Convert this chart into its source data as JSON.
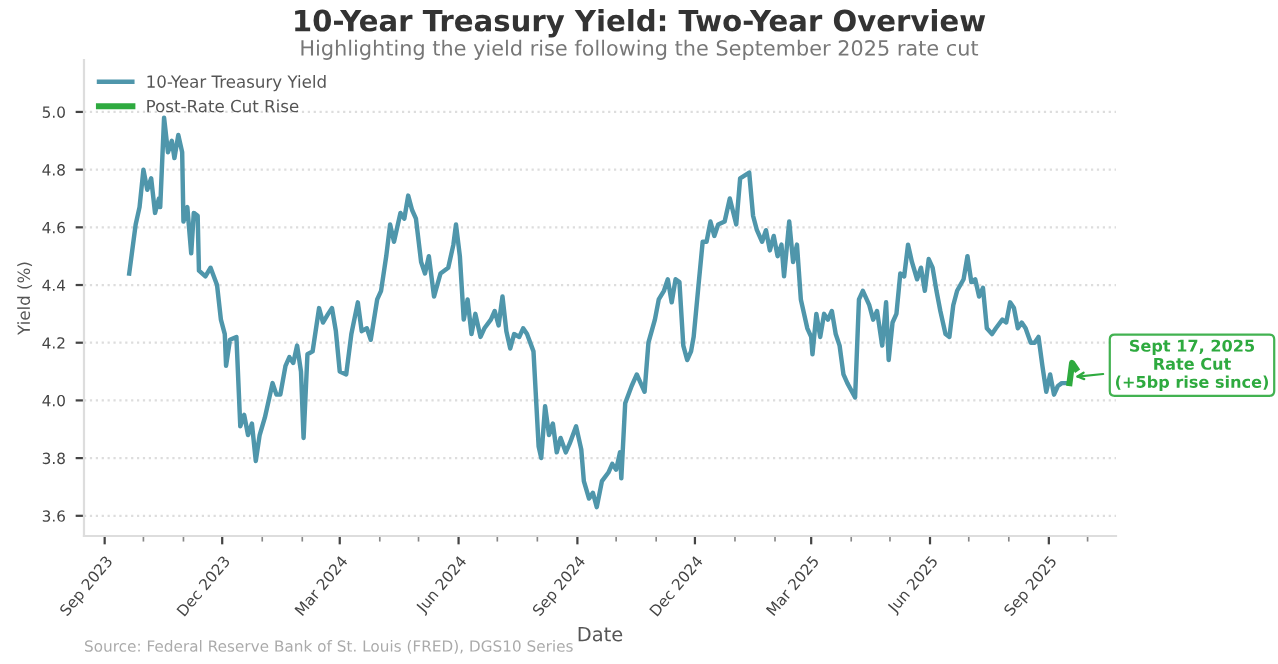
{
  "chart_data": {
    "type": "line",
    "title": "10-Year Treasury Yield: Two-Year Overview",
    "subtitle": "Highlighting the yield rise following the September 2025 rate cut",
    "xlabel": "Date",
    "ylabel": "Yield (%)",
    "series": [
      {
        "name": "10-Year Treasury Yield",
        "color": "#4f96ab",
        "x": [
          "2023-09-20",
          "2023-09-25",
          "2023-09-28",
          "2023-10-01",
          "2023-10-04",
          "2023-10-07",
          "2023-10-10",
          "2023-10-13",
          "2023-10-14",
          "2023-10-17",
          "2023-10-20",
          "2023-10-23",
          "2023-10-25",
          "2023-10-28",
          "2023-10-31",
          "2023-11-01",
          "2023-11-04",
          "2023-11-07",
          "2023-11-09",
          "2023-11-12",
          "2023-11-13",
          "2023-11-18",
          "2023-11-22",
          "2023-11-27",
          "2023-11-30",
          "2023-12-03",
          "2023-12-04",
          "2023-12-07",
          "2023-12-12",
          "2023-12-15",
          "2023-12-18",
          "2023-12-21",
          "2023-12-24",
          "2023-12-27",
          "2023-12-30",
          "2024-01-03",
          "2024-01-06",
          "2024-01-09",
          "2024-01-12",
          "2024-01-15",
          "2024-01-19",
          "2024-01-22",
          "2024-01-25",
          "2024-01-28",
          "2024-01-31",
          "2024-02-02",
          "2024-02-05",
          "2024-02-09",
          "2024-02-14",
          "2024-02-17",
          "2024-02-21",
          "2024-02-24",
          "2024-02-27",
          "2024-03-01",
          "2024-03-06",
          "2024-03-10",
          "2024-03-15",
          "2024-03-18",
          "2024-03-22",
          "2024-03-25",
          "2024-03-30",
          "2024-04-02",
          "2024-04-06",
          "2024-04-09",
          "2024-04-12",
          "2024-04-17",
          "2024-04-20",
          "2024-04-23",
          "2024-04-26",
          "2024-04-29",
          "2024-05-03",
          "2024-05-06",
          "2024-05-09",
          "2024-05-13",
          "2024-05-18",
          "2024-05-24",
          "2024-05-28",
          "2024-05-30",
          "2024-06-02",
          "2024-06-05",
          "2024-06-08",
          "2024-06-11",
          "2024-06-14",
          "2024-06-18",
          "2024-06-21",
          "2024-06-26",
          "2024-06-29",
          "2024-07-02",
          "2024-07-05",
          "2024-07-08",
          "2024-07-11",
          "2024-07-14",
          "2024-07-18",
          "2024-07-21",
          "2024-07-24",
          "2024-07-29",
          "2024-08-02",
          "2024-08-04",
          "2024-08-07",
          "2024-08-10",
          "2024-08-13",
          "2024-08-16",
          "2024-08-19",
          "2024-08-23",
          "2024-08-26",
          "2024-08-31",
          "2024-09-04",
          "2024-09-06",
          "2024-09-10",
          "2024-09-13",
          "2024-09-16",
          "2024-09-20",
          "2024-09-25",
          "2024-09-28",
          "2024-10-01",
          "2024-10-04",
          "2024-10-05",
          "2024-10-08",
          "2024-10-13",
          "2024-10-17",
          "2024-10-20",
          "2024-10-23",
          "2024-10-26",
          "2024-10-31",
          "2024-11-03",
          "2024-11-07",
          "2024-11-10",
          "2024-11-13",
          "2024-11-16",
          "2024-11-19",
          "2024-11-22",
          "2024-11-25",
          "2024-11-28",
          "2024-11-30",
          "2024-12-04",
          "2024-12-07",
          "2024-12-10",
          "2024-12-13",
          "2024-12-16",
          "2024-12-19",
          "2024-12-24",
          "2024-12-28",
          "2025-01-02",
          "2025-01-05",
          "2025-01-12",
          "2025-01-15",
          "2025-01-18",
          "2025-01-22",
          "2025-01-25",
          "2025-01-28",
          "2025-01-31",
          "2025-02-03",
          "2025-02-06",
          "2025-02-08",
          "2025-02-12",
          "2025-02-15",
          "2025-02-18",
          "2025-02-21",
          "2025-02-26",
          "2025-03-01",
          "2025-03-02",
          "2025-03-05",
          "2025-03-08",
          "2025-03-11",
          "2025-03-14",
          "2025-03-17",
          "2025-03-20",
          "2025-03-23",
          "2025-03-26",
          "2025-03-29",
          "2025-04-04",
          "2025-04-07",
          "2025-04-10",
          "2025-04-15",
          "2025-04-18",
          "2025-04-21",
          "2025-04-25",
          "2025-04-28",
          "2025-04-30",
          "2025-05-03",
          "2025-05-06",
          "2025-05-09",
          "2025-05-12",
          "2025-05-15",
          "2025-05-18",
          "2025-05-22",
          "2025-05-25",
          "2025-05-28",
          "2025-05-31",
          "2025-06-03",
          "2025-06-06",
          "2025-06-09",
          "2025-06-13",
          "2025-06-16",
          "2025-06-19",
          "2025-06-22",
          "2025-06-27",
          "2025-06-30",
          "2025-07-03",
          "2025-07-06",
          "2025-07-09",
          "2025-07-12",
          "2025-07-15",
          "2025-07-19",
          "2025-07-22",
          "2025-07-27",
          "2025-07-30",
          "2025-08-02",
          "2025-08-05",
          "2025-08-08",
          "2025-08-11",
          "2025-08-14",
          "2025-08-18",
          "2025-08-21",
          "2025-08-24",
          "2025-08-27",
          "2025-08-30",
          "2025-09-02",
          "2025-09-05",
          "2025-09-08",
          "2025-09-11",
          "2025-09-17"
        ],
        "values": [
          4.44,
          4.61,
          4.67,
          4.8,
          4.73,
          4.77,
          4.65,
          4.7,
          4.67,
          4.98,
          4.86,
          4.9,
          4.84,
          4.92,
          4.86,
          4.62,
          4.67,
          4.51,
          4.65,
          4.64,
          4.45,
          4.43,
          4.46,
          4.4,
          4.28,
          4.23,
          4.12,
          4.21,
          4.22,
          3.91,
          3.95,
          3.88,
          3.92,
          3.79,
          3.88,
          3.94,
          4.0,
          4.06,
          4.02,
          4.02,
          4.12,
          4.15,
          4.13,
          4.19,
          4.1,
          3.87,
          4.16,
          4.17,
          4.32,
          4.27,
          4.3,
          4.32,
          4.24,
          4.1,
          4.09,
          4.23,
          4.34,
          4.24,
          4.25,
          4.21,
          4.35,
          4.38,
          4.5,
          4.61,
          4.55,
          4.65,
          4.63,
          4.71,
          4.66,
          4.63,
          4.48,
          4.44,
          4.5,
          4.36,
          4.44,
          4.46,
          4.54,
          4.61,
          4.5,
          4.28,
          4.35,
          4.23,
          4.3,
          4.22,
          4.25,
          4.28,
          4.31,
          4.26,
          4.36,
          4.24,
          4.18,
          4.23,
          4.22,
          4.25,
          4.23,
          4.17,
          3.84,
          3.8,
          3.98,
          3.88,
          3.92,
          3.82,
          3.87,
          3.82,
          3.85,
          3.91,
          3.83,
          3.72,
          3.66,
          3.68,
          3.63,
          3.72,
          3.75,
          3.78,
          3.76,
          3.82,
          3.73,
          3.99,
          4.05,
          4.09,
          4.06,
          4.03,
          4.2,
          4.28,
          4.35,
          4.38,
          4.42,
          4.34,
          4.42,
          4.41,
          4.19,
          4.14,
          4.17,
          4.22,
          4.41,
          4.55,
          4.55,
          4.62,
          4.57,
          4.61,
          4.62,
          4.7,
          4.61,
          4.77,
          4.79,
          4.64,
          4.59,
          4.55,
          4.59,
          4.52,
          4.57,
          4.5,
          4.54,
          4.43,
          4.62,
          4.48,
          4.54,
          4.35,
          4.25,
          4.22,
          4.16,
          4.3,
          4.22,
          4.3,
          4.28,
          4.31,
          4.23,
          4.19,
          4.09,
          4.06,
          4.01,
          4.35,
          4.38,
          4.33,
          4.28,
          4.31,
          4.19,
          4.34,
          4.14,
          4.27,
          4.3,
          4.44,
          4.43,
          4.54,
          4.48,
          4.42,
          4.46,
          4.38,
          4.49,
          4.46,
          4.38,
          4.31,
          4.23,
          4.22,
          4.33,
          4.38,
          4.42,
          4.5,
          4.41,
          4.42,
          4.36,
          4.39,
          4.25,
          4.23,
          4.25,
          4.28,
          4.27,
          4.34,
          4.32,
          4.25,
          4.27,
          4.25,
          4.2,
          4.2,
          4.22,
          4.12,
          4.03,
          4.09,
          4.02,
          4.05,
          4.06,
          4.06
        ]
      },
      {
        "name": "Post-Rate Cut Rise",
        "color": "#2eaa3f",
        "x": [
          "2025-09-17",
          "2025-09-19",
          "2025-09-22"
        ],
        "values": [
          4.06,
          4.13,
          4.11
        ]
      }
    ],
    "xlim": [
      "2023-08-16",
      "2025-10-23"
    ],
    "xticks": [
      {
        "value": "2023-09-01",
        "label": "Sep 2023"
      },
      {
        "value": "2023-12-01",
        "label": "Dec 2023"
      },
      {
        "value": "2024-03-01",
        "label": "Mar 2024"
      },
      {
        "value": "2024-06-01",
        "label": "Jun 2024"
      },
      {
        "value": "2024-09-01",
        "label": "Sep 2024"
      },
      {
        "value": "2024-12-01",
        "label": "Dec 2024"
      },
      {
        "value": "2025-03-01",
        "label": "Mar 2025"
      },
      {
        "value": "2025-06-01",
        "label": "Jun 2025"
      },
      {
        "value": "2025-09-01",
        "label": "Sep 2025"
      }
    ],
    "ylim": [
      3.53,
      5.18
    ],
    "yticks": [
      3.6,
      3.8,
      {
        "value": 4,
        "label": "4.0"
      },
      4.2,
      4.4,
      4.6,
      4.8,
      {
        "value": 5,
        "label": "5.0"
      }
    ],
    "grid": "y",
    "legend": "top left",
    "line_style": "solid",
    "marker": "none",
    "annotations": [
      {
        "text": "Sept 17, 2025\nRate Cut\n(+5bp rise since)",
        "x": "2025-09-17",
        "y": 4.08
      },
      "Source: Federal Reserve Bank of St. Louis (FRED), DGS10 Series"
    ]
  }
}
